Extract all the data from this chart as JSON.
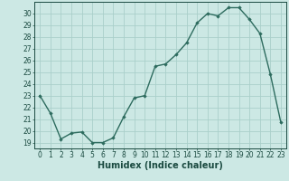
{
  "x": [
    0,
    1,
    2,
    3,
    4,
    5,
    6,
    7,
    8,
    9,
    10,
    11,
    12,
    13,
    14,
    15,
    16,
    17,
    18,
    19,
    20,
    21,
    22,
    23
  ],
  "y": [
    23.0,
    21.5,
    19.3,
    19.8,
    19.9,
    19.0,
    19.0,
    19.4,
    21.2,
    22.8,
    23.0,
    25.5,
    25.7,
    26.5,
    27.5,
    29.2,
    30.0,
    29.8,
    30.5,
    30.5,
    29.5,
    28.3,
    24.8,
    20.7
  ],
  "xlabel": "Humidex (Indice chaleur)",
  "xlim": [
    -0.5,
    23.5
  ],
  "ylim": [
    18.5,
    31.0
  ],
  "yticks": [
    19,
    20,
    21,
    22,
    23,
    24,
    25,
    26,
    27,
    28,
    29,
    30
  ],
  "xticks": [
    0,
    1,
    2,
    3,
    4,
    5,
    6,
    7,
    8,
    9,
    10,
    11,
    12,
    13,
    14,
    15,
    16,
    17,
    18,
    19,
    20,
    21,
    22,
    23
  ],
  "line_color": "#2d6b5e",
  "marker_color": "#2d6b5e",
  "bg_color": "#cce8e4",
  "grid_color": "#aacfca",
  "axis_label_color": "#1a4a40",
  "tick_label_color": "#1a4a40",
  "font_size_xlabel": 7,
  "font_size_ticks": 5.5,
  "marker": "D",
  "marker_size": 1.8,
  "line_width": 1.0
}
